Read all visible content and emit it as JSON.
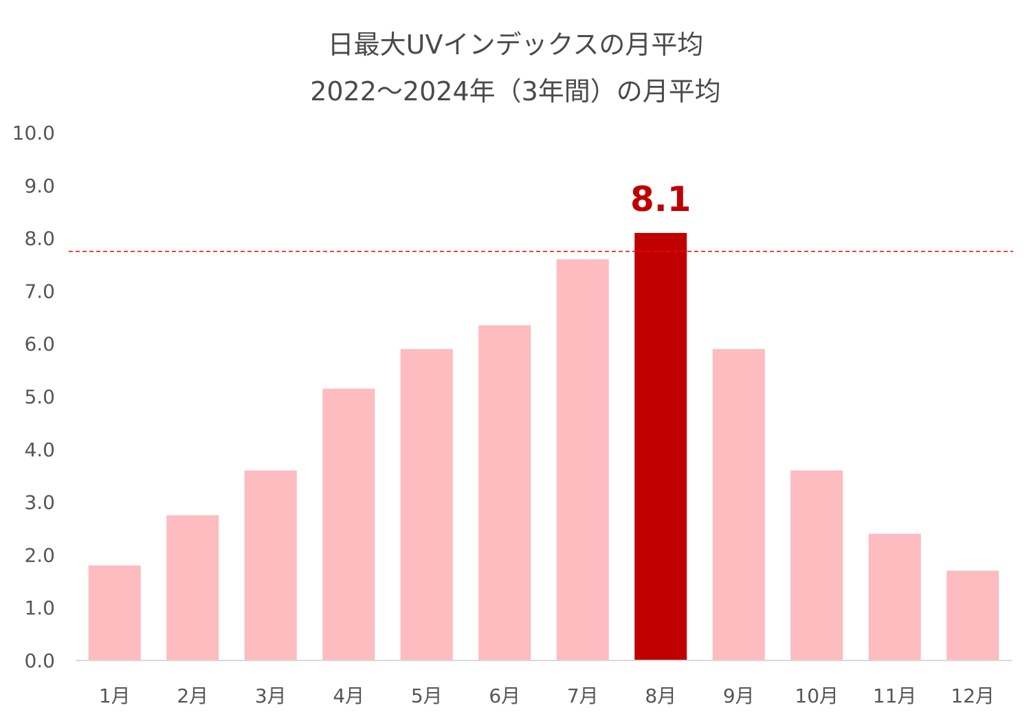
{
  "chart_data": {
    "type": "bar",
    "title": "日最大UVインデックスの月平均",
    "subtitle": "2022～2024年（3年間）の月平均",
    "categories": [
      "1月",
      "2月",
      "3月",
      "4月",
      "5月",
      "6月",
      "7月",
      "8月",
      "9月",
      "10月",
      "11月",
      "12月"
    ],
    "values": [
      1.8,
      2.75,
      3.6,
      5.15,
      5.9,
      6.35,
      7.6,
      8.1,
      5.9,
      3.6,
      2.4,
      1.7
    ],
    "ylim": [
      0,
      10
    ],
    "yticks": [
      "0.0",
      "1.0",
      "2.0",
      "3.0",
      "4.0",
      "5.0",
      "6.0",
      "7.0",
      "8.0",
      "9.0",
      "10.0"
    ],
    "xlabel": "",
    "ylabel": "",
    "grid": false,
    "legend": "none",
    "highlight": {
      "category": "8月",
      "value_label": "8.1"
    },
    "reference_line": {
      "value": 7.75,
      "style": "dashed"
    },
    "colors": {
      "bar": "#fdbcbf",
      "highlight_bar": "#c00000",
      "highlight_label": "#c00000",
      "reference_line": "#ff0000",
      "axis_text": "#555555",
      "title_text": "#4a4a4a",
      "baseline": "#d9d9d9"
    }
  }
}
